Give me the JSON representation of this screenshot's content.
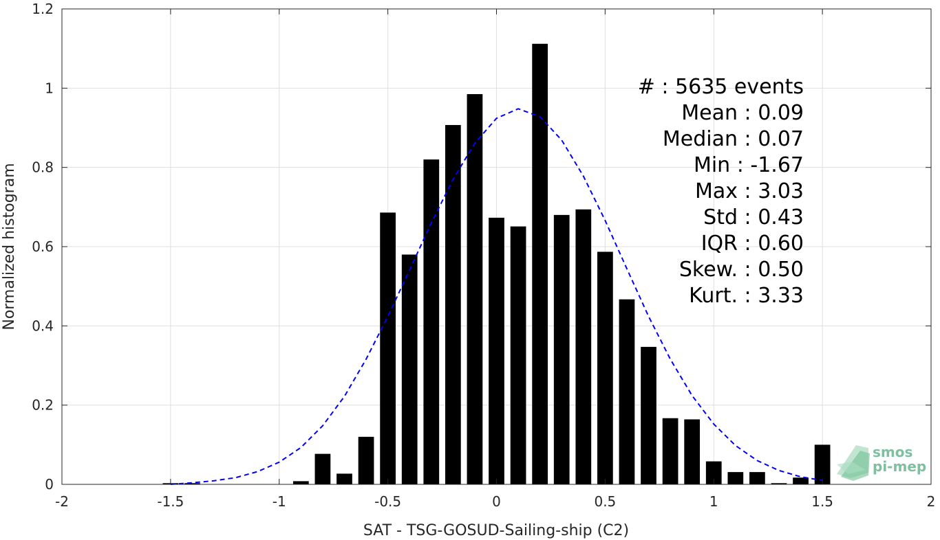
{
  "chart_data": {
    "type": "bar",
    "xlabel": "SAT - TSG-GOSUD-Sailing-ship (C2)",
    "ylabel": "Normalized histogram",
    "xlim": [
      -2,
      2
    ],
    "ylim": [
      0,
      1.2
    ],
    "xticks": [
      -2,
      -1.5,
      -1,
      -0.5,
      0,
      0.5,
      1,
      1.5,
      2
    ],
    "xtick_labels": [
      "-2",
      "-1.5",
      "-1",
      "-0.5",
      "0",
      "0.5",
      "1",
      "1.5",
      "2"
    ],
    "yticks": [
      0,
      0.2,
      0.4,
      0.6,
      0.8,
      1,
      1.2
    ],
    "ytick_labels": [
      "0",
      "0.2",
      "0.4",
      "0.6",
      "0.8",
      "1",
      "1.2"
    ],
    "grid": true,
    "bin_width": 0.1,
    "bar_color": "#000000",
    "fit_color": "#0000ff",
    "bars": {
      "x": [
        -1.5,
        -1.4,
        -0.9,
        -0.8,
        -0.7,
        -0.6,
        -0.5,
        -0.4,
        -0.3,
        -0.2,
        -0.1,
        0.0,
        0.1,
        0.2,
        0.3,
        0.4,
        0.5,
        0.6,
        0.7,
        0.8,
        0.9,
        1.0,
        1.1,
        1.2,
        1.3,
        1.4,
        1.5
      ],
      "values": [
        0.003,
        0.003,
        0.008,
        0.077,
        0.027,
        0.12,
        0.686,
        0.58,
        0.82,
        0.907,
        0.985,
        0.673,
        0.651,
        1.112,
        0.68,
        0.694,
        0.587,
        0.467,
        0.347,
        0.167,
        0.164,
        0.058,
        0.031,
        0.031,
        0.003,
        0.017,
        0.1
      ]
    },
    "fit_line": {
      "name": "Normal fit",
      "style": "dashed",
      "x": [
        -1.5,
        -1.4,
        -1.3,
        -1.2,
        -1.1,
        -1.0,
        -0.9,
        -0.8,
        -0.7,
        -0.6,
        -0.5,
        -0.4,
        -0.3,
        -0.2,
        -0.1,
        0.0,
        0.1,
        0.2,
        0.3,
        0.4,
        0.5,
        0.6,
        0.7,
        0.8,
        0.9,
        1.0,
        1.1,
        1.2,
        1.3,
        1.4,
        1.5
      ],
      "y": [
        0.0,
        0.004,
        0.009,
        0.017,
        0.032,
        0.056,
        0.093,
        0.148,
        0.222,
        0.316,
        0.424,
        0.541,
        0.66,
        0.77,
        0.861,
        0.924,
        0.948,
        0.928,
        0.869,
        0.778,
        0.666,
        0.544,
        0.424,
        0.316,
        0.224,
        0.152,
        0.098,
        0.06,
        0.035,
        0.019,
        0.01
      ]
    },
    "annotations": [
      {
        "label": "#  ",
        "value": ": 5635 events"
      },
      {
        "label": "Mean",
        "value": ": 0.09"
      },
      {
        "label": "Median",
        "value": ": 0.07"
      },
      {
        "label": "Min",
        "value": ": -1.67"
      },
      {
        "label": "Max",
        "value": ": 3.03"
      },
      {
        "label": "Std",
        "value": ": 0.43"
      },
      {
        "label": "IQR",
        "value": ": 0.60"
      },
      {
        "label": "Skew.",
        "value": ": 0.50"
      },
      {
        "label": "Kurt.",
        "value": ": 3.33"
      }
    ],
    "logo": {
      "line1": "smos",
      "line2": "pi-mep",
      "color": "#7fbf9f"
    }
  }
}
